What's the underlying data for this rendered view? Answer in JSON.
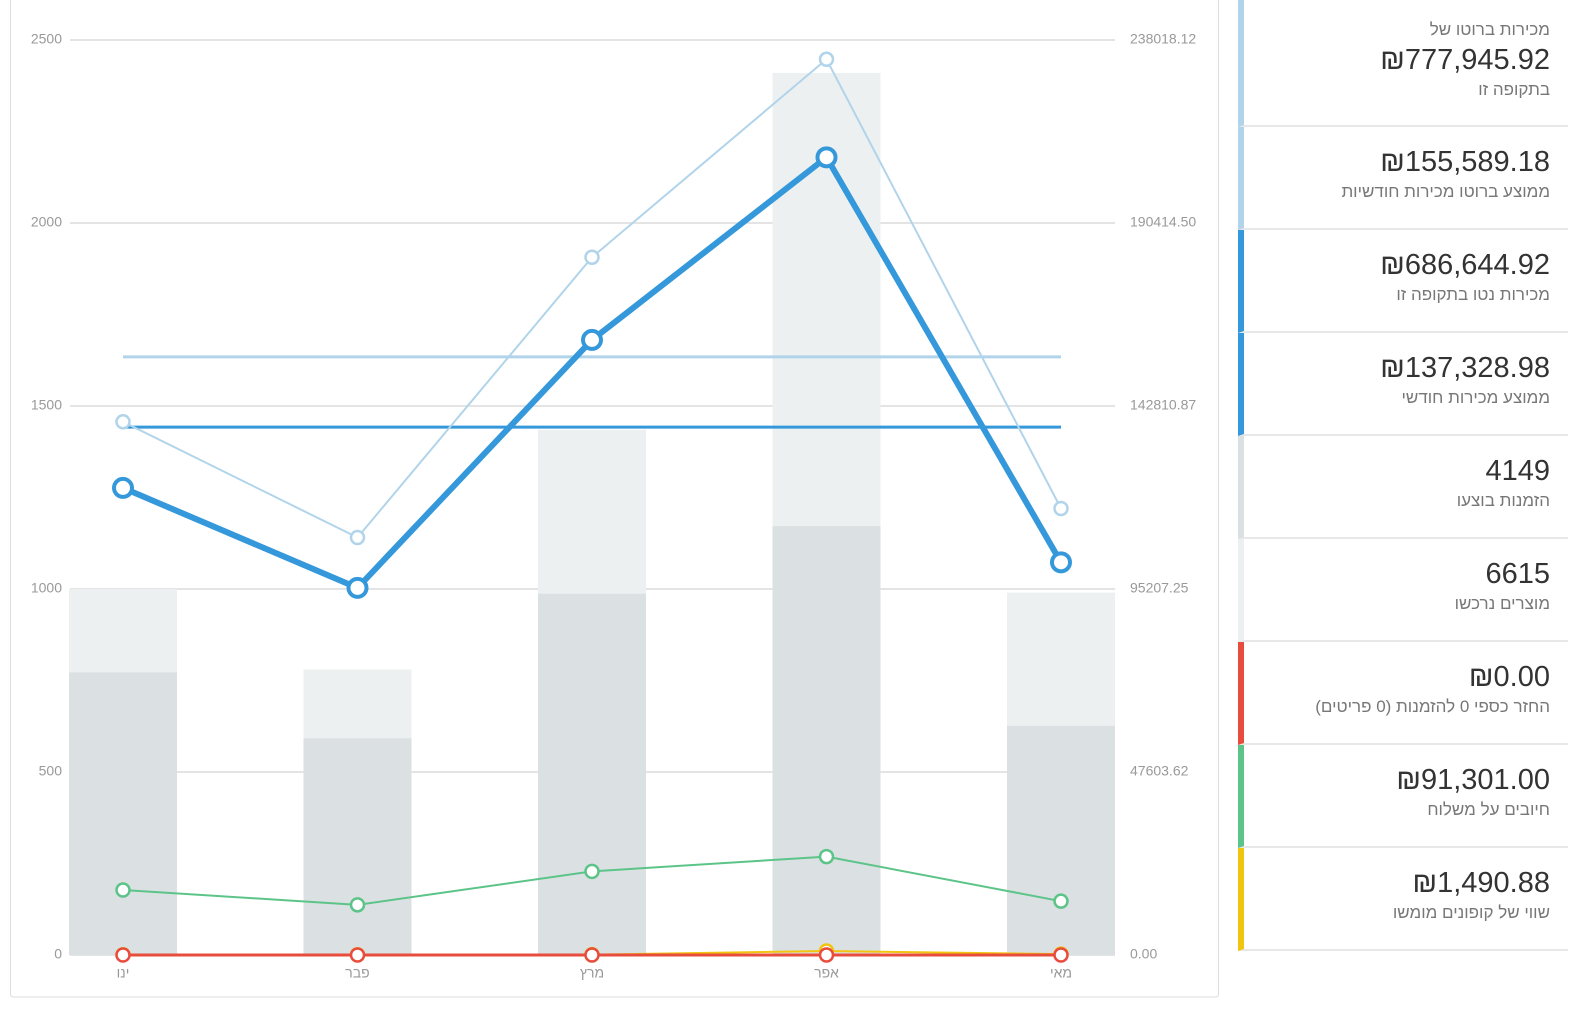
{
  "chart_data": {
    "type": "combo",
    "categories": [
      "ינו",
      "פבר",
      "מרץ",
      "אפר",
      "מאי"
    ],
    "ylim": [
      0,
      2500
    ],
    "yticks": [
      0,
      500,
      1000,
      1500,
      2000,
      2500
    ],
    "y2lim": [
      0,
      238018.12
    ],
    "y2ticks": [
      {
        "value": 0,
        "label": "0.00"
      },
      47603.62,
      95207.25,
      142810.87,
      {
        "value": 190414.5,
        "label": "190414.50"
      },
      238018.12
    ],
    "grid": true,
    "bars": [
      {
        "color": "#ecf0f1",
        "values": [
          1000,
          780,
          1435,
          2410,
          990
        ]
      },
      {
        "color": "#dbe1e3",
        "values": [
          772,
          592,
          987,
          1172,
          626
        ]
      }
    ],
    "averages": [
      {
        "color": "#b1d4ea",
        "axis": "y2",
        "value": 155589.18
      },
      {
        "color": "#3498db",
        "axis": "y2",
        "value": 137328.98
      }
    ],
    "series": [
      {
        "color": "#5cc488",
        "axis": "y2",
        "width": 2,
        "values": [
          16900,
          13050,
          21750,
          25600,
          14001
        ]
      },
      {
        "color": "#f1c40f",
        "axis": "y2",
        "width": 2,
        "values": [
          80,
          60,
          90,
          1040,
          220.88
        ]
      },
      {
        "color": "#e74c3c",
        "axis": "y2",
        "width": 3,
        "values": [
          0,
          0,
          0,
          0,
          0
        ]
      },
      {
        "color": "#b1d4ea",
        "axis": "y2",
        "width": 2,
        "values": [
          138700,
          108600,
          181500,
          233000,
          116145.92
        ]
      },
      {
        "color": "#3498db",
        "axis": "y2",
        "width": 6,
        "values": [
          121500,
          95500,
          160000,
          207500,
          102144.92
        ]
      }
    ]
  },
  "sidebar": {
    "items": [
      {
        "color": "#b1d4ea",
        "prefix": "מכירות ברוטו של",
        "value": "₪777,945.92",
        "label": "בתקופה זו"
      },
      {
        "color": "#b1d4ea",
        "value": "₪155,589.18",
        "label": "ממוצע ברוטו מכירות חודשיות"
      },
      {
        "color": "#3498db",
        "value": "₪686,644.92",
        "label": "מכירות נטו בתקופה זו"
      },
      {
        "color": "#3498db",
        "value": "₪137,328.98",
        "label": "ממוצע מכירות חודשי"
      },
      {
        "color": "#dbe1e3",
        "value": "4149",
        "label": "הזמנות בוצעו"
      },
      {
        "color": "#ecf0f1",
        "value": "6615",
        "label": "מוצרים נרכשו"
      },
      {
        "color": "#e74c3c",
        "value": "₪0.00",
        "label": "החזר כספי 0 להזמנות (0 פריטים)"
      },
      {
        "color": "#5cc488",
        "value": "₪91,301.00",
        "label": "חיובים על משלוח"
      },
      {
        "color": "#f1c40f",
        "value": "₪1,490.88",
        "label": "שווי של קופונים מומשו"
      }
    ]
  }
}
